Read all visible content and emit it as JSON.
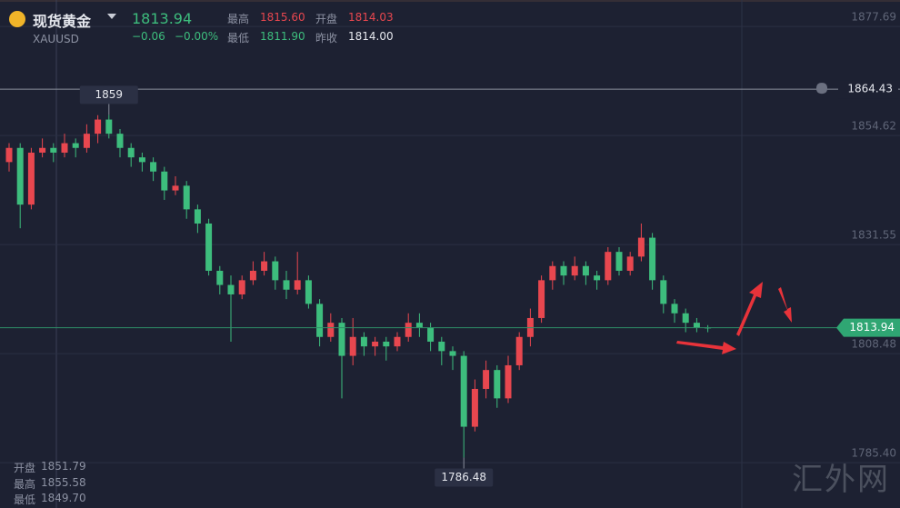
{
  "header": {
    "title": "现货黄金",
    "price": "1813.94",
    "symbol": "XAUUSD",
    "change": "−0.06",
    "change_pct": "−0.00%",
    "high_label": "最高",
    "high": "1815.60",
    "open_label": "开盘",
    "open": "1814.03",
    "low_label": "最低",
    "low": "1811.90",
    "prev_close_label": "昨收",
    "prev_close": "1814.00"
  },
  "crosshair_info": {
    "open_label": "开盘",
    "open": "1851.79",
    "high_label": "最高",
    "high": "1855.58",
    "low_label": "最低",
    "low": "1849.70"
  },
  "watermark": "汇外网",
  "chart_data": {
    "type": "candlestick",
    "ylim": [
      1775.8,
      1883.3
    ],
    "yticks": [
      1877.69,
      1854.62,
      1831.55,
      1808.48,
      {
        "value": 1785.4,
        "label": "1785.40"
      }
    ],
    "grid": true,
    "up_color": "#e8474f",
    "down_color": "#3dbd7d",
    "alert_price": 1864.43,
    "open": [
      1849,
      1852,
      1840,
      1851,
      1852,
      1851,
      1853,
      1852,
      1855,
      1858,
      1855,
      1852,
      1850,
      1849,
      1847,
      1843,
      1844,
      1839,
      1836,
      1826,
      1823,
      1821,
      1824,
      1826,
      1828,
      1824,
      1822,
      1824,
      1819,
      1812,
      1815,
      1808,
      1812,
      1810,
      1811,
      1810,
      1812,
      1815,
      1814,
      1811,
      1809,
      1808,
      1793,
      1801,
      1805,
      1799,
      1806,
      1812,
      1816,
      1824,
      1827,
      1825,
      1827,
      1825,
      1824,
      1830,
      1826,
      1829,
      1833,
      1824,
      1819,
      1817,
      1815,
      1814
    ],
    "high": [
      1853,
      1853,
      1852,
      1854,
      1853,
      1855,
      1854,
      1857,
      1858.93,
      1859,
      1856,
      1853,
      1851,
      1850,
      1848,
      1846,
      1845,
      1840,
      1837,
      1827,
      1825,
      1825,
      1828,
      1830,
      1829,
      1826,
      1830,
      1825,
      1820,
      1817,
      1816,
      1816,
      1813,
      1812,
      1812,
      1813,
      1817,
      1817,
      1815,
      1812,
      1810,
      1809,
      1803,
      1807,
      1806,
      1808,
      1813,
      1818,
      1825,
      1828,
      1828,
      1829,
      1828,
      1826,
      1831,
      1831,
      1830,
      1836,
      1834,
      1825,
      1820,
      1818,
      1816,
      1814.5
    ],
    "low": [
      1847,
      1835,
      1839,
      1850,
      1849,
      1850,
      1850,
      1851,
      1853,
      1854,
      1850,
      1848,
      1847,
      1845,
      1841,
      1842,
      1837,
      1834,
      1825,
      1821,
      1811,
      1820,
      1823,
      1825,
      1822,
      1820,
      1821,
      1818,
      1810,
      1811,
      1799,
      1806,
      1808,
      1808,
      1807,
      1809,
      1811,
      1812,
      1809,
      1806,
      1805,
      1786.48,
      1792,
      1799,
      1797,
      1798,
      1805,
      1810,
      1815,
      1822,
      1823,
      1824,
      1823,
      1822,
      1823,
      1825,
      1825,
      1828,
      1822,
      1817,
      1815,
      1813,
      1813,
      1813
    ],
    "close": [
      1852,
      1840,
      1851,
      1852,
      1851,
      1853,
      1852,
      1855,
      1858,
      1855,
      1852,
      1850,
      1849,
      1847,
      1843,
      1844,
      1839,
      1836,
      1826,
      1823,
      1821,
      1824,
      1826,
      1828,
      1824,
      1822,
      1824,
      1819,
      1812,
      1815,
      1808,
      1812,
      1810,
      1811,
      1810,
      1812,
      1815,
      1814,
      1811,
      1809,
      1808,
      1793,
      1801,
      1805,
      1799,
      1806,
      1812,
      1816,
      1824,
      1827,
      1825,
      1827,
      1825,
      1824,
      1830,
      1826,
      1829,
      1833,
      1824,
      1819,
      1817,
      1815,
      1814,
      1813.94
    ]
  }
}
